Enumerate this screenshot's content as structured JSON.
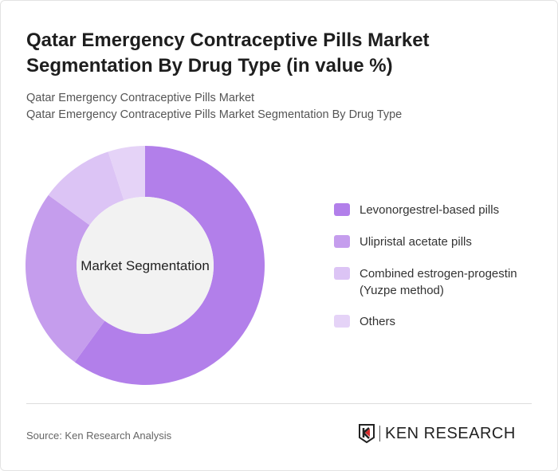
{
  "title": "Qatar Emergency Contraceptive Pills Market Segmentation By Drug Type (in value %)",
  "subtitle1": "Qatar Emergency Contraceptive Pills Market",
  "subtitle2": "Qatar Emergency Contraceptive Pills Market Segmentation By Drug Type",
  "source": "Source: Ken Research Analysis",
  "logo": "KEN RESEARCH",
  "chart_data": {
    "type": "pie",
    "variant": "donut",
    "center_label": "Market Segmentation",
    "legend_position": "right",
    "categories": [
      "Levonorgestrel-based pills",
      "Ulipristal acetate pills",
      "Combined estrogen-progestin (Yuzpe method)",
      "Others"
    ],
    "values": [
      60,
      25,
      10,
      5
    ],
    "colors": [
      "#b27fea",
      "#c59ded",
      "#dcc4f5",
      "#e5d3f7"
    ]
  }
}
